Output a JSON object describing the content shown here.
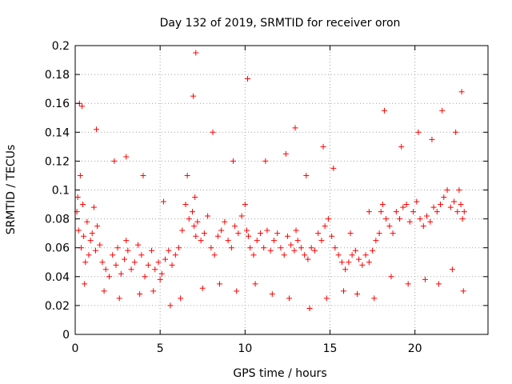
{
  "chart_data": {
    "type": "scatter",
    "title": "Day 132 of 2019, SRMTID for receiver oron",
    "xlabel": "GPS time / hours",
    "ylabel": "SRMTID / TECUs",
    "xlim": [
      0,
      24.3
    ],
    "ylim": [
      0,
      0.2
    ],
    "xticks": [
      0,
      5,
      10,
      15,
      20
    ],
    "xtick_labels": [
      "0",
      "5",
      "10",
      "15",
      "20"
    ],
    "yticks": [
      0,
      0.02,
      0.04,
      0.06,
      0.08,
      0.1,
      0.12,
      0.14,
      0.16,
      0.18,
      0.2
    ],
    "ytick_labels": [
      "0",
      "0.02",
      "0.04",
      "0.06",
      "0.08",
      "0.1",
      "0.12",
      "0.14",
      "0.16",
      "0.18",
      "0.2"
    ],
    "grid": true,
    "marker": "+",
    "marker_color": "#ff0000",
    "series": [
      {
        "name": "SRMTID",
        "x": [
          0.1,
          0.15,
          0.2,
          0.3,
          0.35,
          0.45,
          0.5,
          0.6,
          0.7,
          0.8,
          0.9,
          1.0,
          1.1,
          1.2,
          1.3,
          1.45,
          1.6,
          1.8,
          2.0,
          2.2,
          2.4,
          2.5,
          2.7,
          2.9,
          3.0,
          3.1,
          3.3,
          3.5,
          3.7,
          3.9,
          4.1,
          4.3,
          4.5,
          4.7,
          4.9,
          5.0,
          5.1,
          5.3,
          5.5,
          5.7,
          5.9,
          6.1,
          6.3,
          6.5,
          6.7,
          6.9,
          7.0,
          7.05,
          7.1,
          7.2,
          7.4,
          7.6,
          7.8,
          8.0,
          8.2,
          8.4,
          8.6,
          8.8,
          9.0,
          9.2,
          9.4,
          9.6,
          9.8,
          10.0,
          10.1,
          10.2,
          10.3,
          10.5,
          10.7,
          10.9,
          11.1,
          11.3,
          11.5,
          11.7,
          11.9,
          12.1,
          12.3,
          12.5,
          12.7,
          12.9,
          13.0,
          13.1,
          13.3,
          13.5,
          13.7,
          13.9,
          14.1,
          14.3,
          14.5,
          14.7,
          14.9,
          15.1,
          15.3,
          15.5,
          15.7,
          15.9,
          16.1,
          16.3,
          16.5,
          16.7,
          16.9,
          17.1,
          17.3,
          17.5,
          17.7,
          17.9,
          18.0,
          18.1,
          18.3,
          18.5,
          18.7,
          18.9,
          19.1,
          19.3,
          19.5,
          19.7,
          19.9,
          20.1,
          20.3,
          20.5,
          20.7,
          20.9,
          21.1,
          21.3,
          21.5,
          21.7,
          21.9,
          22.1,
          22.3,
          22.5,
          22.6,
          22.7,
          22.8,
          22.9,
          0.25,
          0.4,
          1.25,
          2.3,
          3.0,
          4.0,
          5.2,
          6.6,
          6.95,
          7.1,
          8.1,
          9.3,
          10.15,
          11.2,
          12.4,
          12.95,
          13.6,
          14.6,
          15.2,
          16.2,
          17.3,
          18.2,
          19.2,
          20.2,
          21.0,
          21.6,
          22.4,
          22.75,
          0.55,
          1.7,
          2.6,
          3.8,
          4.6,
          5.6,
          6.2,
          7.5,
          8.5,
          9.5,
          10.6,
          11.6,
          12.6,
          13.8,
          14.8,
          15.8,
          16.6,
          17.6,
          18.6,
          19.6,
          20.6,
          21.4,
          22.2,
          22.85
        ],
        "y": [
          0.085,
          0.095,
          0.072,
          0.11,
          0.06,
          0.09,
          0.068,
          0.05,
          0.078,
          0.055,
          0.065,
          0.07,
          0.088,
          0.058,
          0.075,
          0.062,
          0.05,
          0.045,
          0.04,
          0.055,
          0.048,
          0.06,
          0.042,
          0.052,
          0.065,
          0.058,
          0.045,
          0.05,
          0.062,
          0.055,
          0.04,
          0.048,
          0.058,
          0.045,
          0.05,
          0.038,
          0.042,
          0.052,
          0.058,
          0.048,
          0.055,
          0.06,
          0.072,
          0.09,
          0.08,
          0.085,
          0.075,
          0.095,
          0.068,
          0.078,
          0.065,
          0.07,
          0.082,
          0.06,
          0.055,
          0.068,
          0.072,
          0.078,
          0.065,
          0.06,
          0.075,
          0.07,
          0.082,
          0.09,
          0.072,
          0.068,
          0.06,
          0.055,
          0.065,
          0.07,
          0.06,
          0.072,
          0.058,
          0.065,
          0.07,
          0.06,
          0.055,
          0.068,
          0.062,
          0.058,
          0.072,
          0.065,
          0.06,
          0.055,
          0.052,
          0.06,
          0.058,
          0.07,
          0.065,
          0.075,
          0.08,
          0.068,
          0.06,
          0.055,
          0.05,
          0.045,
          0.05,
          0.055,
          0.058,
          0.052,
          0.048,
          0.055,
          0.05,
          0.058,
          0.065,
          0.07,
          0.085,
          0.09,
          0.08,
          0.075,
          0.07,
          0.085,
          0.08,
          0.088,
          0.09,
          0.078,
          0.085,
          0.092,
          0.08,
          0.075,
          0.082,
          0.078,
          0.088,
          0.085,
          0.09,
          0.095,
          0.1,
          0.088,
          0.092,
          0.085,
          0.1,
          0.09,
          0.08,
          0.085,
          0.16,
          0.158,
          0.142,
          0.12,
          0.123,
          0.11,
          0.092,
          0.11,
          0.165,
          0.195,
          0.14,
          0.12,
          0.177,
          0.12,
          0.125,
          0.143,
          0.11,
          0.13,
          0.115,
          0.07,
          0.085,
          0.155,
          0.13,
          0.14,
          0.135,
          0.155,
          0.14,
          0.168,
          0.035,
          0.03,
          0.025,
          0.028,
          0.03,
          0.02,
          0.025,
          0.032,
          0.035,
          0.03,
          0.035,
          0.028,
          0.025,
          0.018,
          0.025,
          0.03,
          0.028,
          0.025,
          0.04,
          0.035,
          0.038,
          0.035,
          0.045,
          0.03
        ]
      }
    ]
  }
}
